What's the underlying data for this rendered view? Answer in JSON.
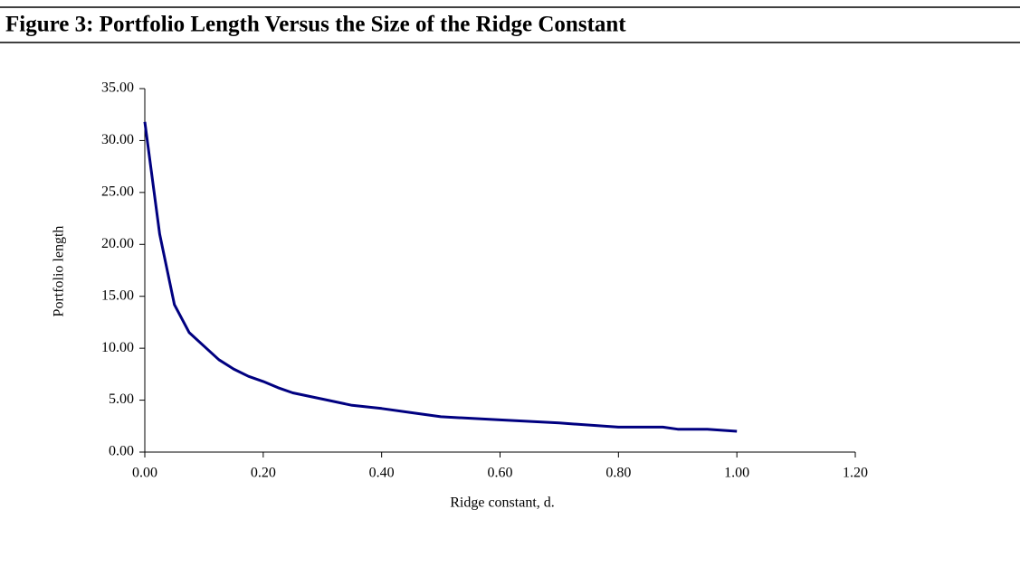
{
  "chart_data": {
    "type": "line",
    "title": "Figure 3: Portfolio Length Versus the Size of the Ridge Constant",
    "x_label": "Ridge constant, d.",
    "y_label": "Portfolio length",
    "x": [
      0,
      0.025,
      0.05,
      0.075,
      0.1,
      0.125,
      0.15,
      0.175,
      0.2,
      0.225,
      0.25,
      0.3,
      0.35,
      0.4,
      0.45,
      0.5,
      0.6,
      0.7,
      0.8,
      0.875,
      0.9,
      0.95,
      1.0
    ],
    "series": [
      {
        "name": "Portfolio length",
        "color": "#000080",
        "values": [
          31.8,
          21,
          14.2,
          11.5,
          10.2,
          8.9,
          8.0,
          7.3,
          6.8,
          6.2,
          5.7,
          5.1,
          4.5,
          4.2,
          3.8,
          3.4,
          3.1,
          2.8,
          2.4,
          2.4,
          2.2,
          2.2,
          2.0
        ]
      }
    ],
    "xlim": [
      0,
      1.2
    ],
    "xticks": [
      {
        "value": 0,
        "label": "0.00"
      },
      {
        "value": 0.2,
        "label": "0.20"
      },
      {
        "value": 0.4,
        "label": "0.40"
      },
      {
        "value": 0.6,
        "label": "0.60"
      },
      {
        "value": 0.8,
        "label": "0.80"
      },
      {
        "value": 1.0,
        "label": "1.00"
      },
      {
        "value": 1.2,
        "label": "1.20"
      }
    ],
    "ylim": [
      0,
      35
    ],
    "yticks": [
      {
        "value": 0,
        "label": "0.00"
      },
      {
        "value": 5,
        "label": "5.00"
      },
      {
        "value": 10,
        "label": "10.00"
      },
      {
        "value": 15,
        "label": "15.00"
      },
      {
        "value": 20,
        "label": "20.00"
      },
      {
        "value": 25,
        "label": "25.00"
      },
      {
        "value": 30,
        "label": "30.00"
      },
      {
        "value": 35,
        "label": "35.00"
      }
    ],
    "grid": false
  }
}
